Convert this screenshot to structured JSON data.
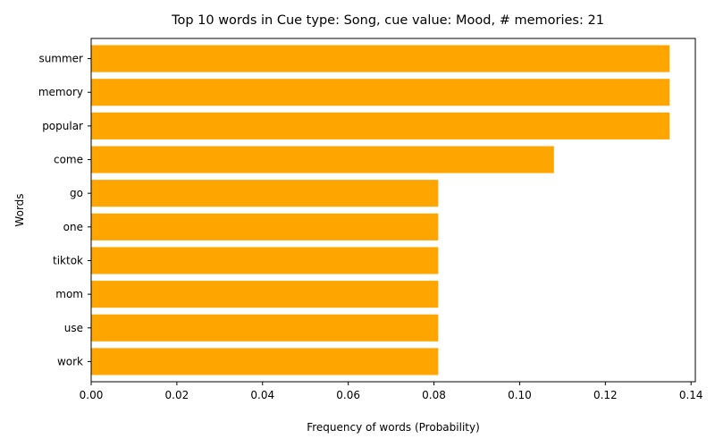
{
  "chart_data": {
    "type": "bar",
    "orientation": "horizontal",
    "title": "Top 10 words in Cue type: Song, cue value: Mood, # memories: 21",
    "xlabel": "Frequency of words (Probability)",
    "ylabel": "Words",
    "categories": [
      "summer",
      "memory",
      "popular",
      "come",
      "go",
      "one",
      "tiktok",
      "mom",
      "use",
      "work"
    ],
    "values": [
      0.135,
      0.135,
      0.135,
      0.108,
      0.081,
      0.081,
      0.081,
      0.081,
      0.081,
      0.081
    ],
    "xlim": [
      0,
      0.141
    ],
    "xticks": [
      "0.00",
      "0.02",
      "0.04",
      "0.06",
      "0.08",
      "0.10",
      "0.12",
      "0.14"
    ],
    "bar_color": "#ffa500",
    "grid": false,
    "legend": "none"
  }
}
